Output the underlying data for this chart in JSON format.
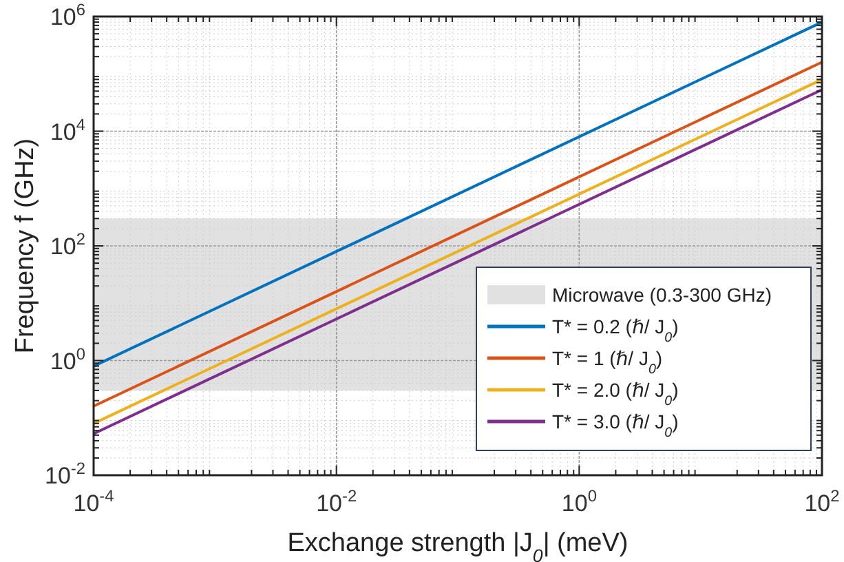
{
  "chart_data": {
    "type": "line",
    "xlabel": "Exchange strength |J$_{0}$| (meV)",
    "ylabel": "Frequency f (GHz)",
    "x": [
      0.0001,
      100
    ],
    "series": [
      {
        "name": "T* = 0.2 (ℏ/ J$_{0}$)",
        "color": "#0072bd",
        "values": [
          0.8,
          800000
        ]
      },
      {
        "name": "T* = 1 (ℏ/ J$_{0}$)",
        "color": "#d95319",
        "values": [
          0.16,
          160000
        ]
      },
      {
        "name": "T* = 2.0 (ℏ/ J$_{0}$)",
        "color": "#edb120",
        "values": [
          0.08,
          80000
        ]
      },
      {
        "name": "T* = 3.0 (ℏ/ J$_{0}$)",
        "color": "#7e2f8e",
        "values": [
          0.053,
          53000
        ]
      }
    ],
    "bands": [
      {
        "axis": "y",
        "from": 0.3,
        "to": 300,
        "label": "Microwave (0.3-300 GHz)",
        "color": "#d9d9d9"
      }
    ],
    "log": "xy",
    "xlim": [
      0.0001,
      100
    ],
    "xticks": [
      {
        "value": 0.0001,
        "label": "10$^{-4}$"
      },
      {
        "value": 0.01,
        "label": "10$^{-2}$"
      },
      {
        "value": 1,
        "label": "10$^{0}$"
      },
      {
        "value": 100,
        "label": "10$^{2}$"
      }
    ],
    "ylim": [
      0.01,
      1000000
    ],
    "yticks": [
      {
        "value": 0.01,
        "label": "10$^{-2}$"
      },
      {
        "value": 1,
        "label": "10$^{0}$"
      },
      {
        "value": 100,
        "label": "10$^{2}$"
      },
      {
        "value": 10000,
        "label": "10$^{4}$"
      },
      {
        "value": 1000000,
        "label": "10$^{6}$"
      }
    ],
    "grid": true,
    "legend": "bottom right",
    "line_style": "solid"
  }
}
